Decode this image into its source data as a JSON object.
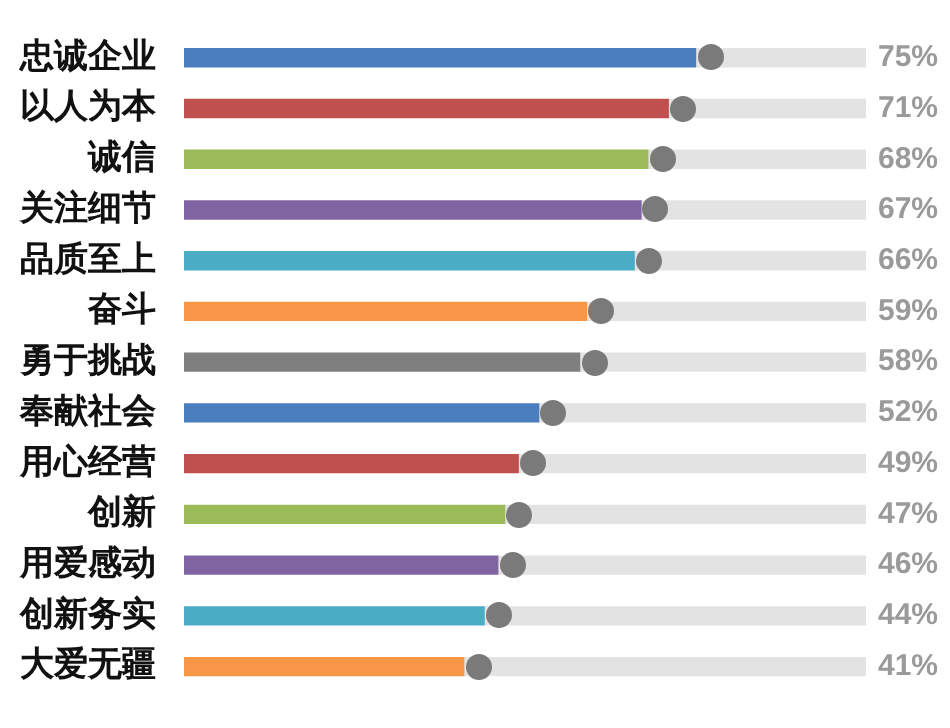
{
  "chart_data": {
    "type": "bar",
    "orientation": "horizontal",
    "stacked": true,
    "categories": [
      "忠诚企业",
      "以人为本",
      "诚信",
      "关注细节",
      "品质至上",
      "奋斗",
      "勇于挑战",
      "奉献社会",
      "用心经营",
      "创新",
      "用爱感动",
      "创新务实",
      "大爱无疆"
    ],
    "series": [
      {
        "values": [
          75,
          71,
          68,
          67,
          66,
          59,
          58,
          52,
          49,
          47,
          46,
          44,
          41
        ],
        "colors": [
          "#4a7ebf",
          "#c0504d",
          "#9bbb59",
          "#8064a2",
          "#4bacc6",
          "#f79646",
          "#7f7f7f",
          "#4a7ebf",
          "#c0504d",
          "#9bbb59",
          "#8064a2",
          "#4bacc6",
          "#f79646"
        ],
        "value_labels": [
          "75%",
          "71%",
          "68%",
          "67%",
          "66%",
          "59%",
          "58%",
          "52%",
          "49%",
          "47%",
          "46%",
          "44%",
          "41%"
        ]
      },
      {
        "values": [
          25,
          29,
          32,
          33,
          34,
          41,
          42,
          48,
          51,
          53,
          54,
          56,
          59
        ],
        "color": "#e3e3e3"
      }
    ],
    "xlim": [
      0,
      100
    ],
    "tick_labels": "y",
    "legend": false
  }
}
